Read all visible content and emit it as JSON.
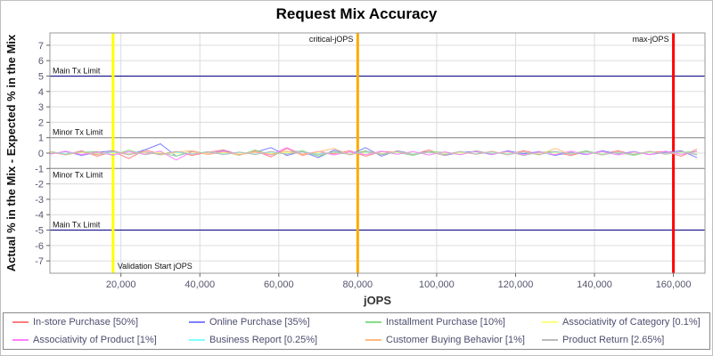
{
  "title": "Request Mix Accuracy",
  "chart_data": {
    "type": "line",
    "title": "Request Mix Accuracy",
    "xlabel": "jOPS",
    "ylabel": "Actual % in the Mix - Expected % in the Mix",
    "xlim": [
      2000,
      168000
    ],
    "ylim": [
      -7.8,
      7.8
    ],
    "grid": true,
    "legend_position": "bottom",
    "y_ticks": [
      7,
      6,
      5,
      4,
      3,
      2,
      1,
      0,
      -1,
      -2,
      -3,
      -4,
      -5,
      -6,
      -7
    ],
    "x_ticks": [
      {
        "v": 20000,
        "label": "20,000"
      },
      {
        "v": 40000,
        "label": "40,000"
      },
      {
        "v": 60000,
        "label": "60,000"
      },
      {
        "v": 80000,
        "label": "80,000"
      },
      {
        "v": 100000,
        "label": "100,000"
      },
      {
        "v": 120000,
        "label": "120,000"
      },
      {
        "v": 140000,
        "label": "140,000"
      },
      {
        "v": 160000,
        "label": "160,000"
      }
    ],
    "h_markers": [
      {
        "value": 5,
        "label": "Main Tx Limit",
        "color": "#000080",
        "label_side": "above"
      },
      {
        "value": 1,
        "label": "Minor Tx Limit",
        "color": "#888888",
        "label_side": "above"
      },
      {
        "value": -1,
        "label": "Minor Tx Limit",
        "color": "#888888",
        "label_side": "below"
      },
      {
        "value": -5,
        "label": "Main Tx Limit",
        "color": "#000080",
        "label_side": "above"
      }
    ],
    "v_markers": [
      {
        "value": 18000,
        "label": "Validation Start jOPS",
        "color": "#ffff00",
        "label_pos": "bottom"
      },
      {
        "value": 80000,
        "label": "critical-jOPS",
        "color": "#ffaa00",
        "label_pos": "top"
      },
      {
        "value": 160000,
        "label": "max-jOPS",
        "color": "#ff0000",
        "label_pos": "top"
      }
    ],
    "x": [
      2000,
      6000,
      10000,
      14000,
      18000,
      22000,
      26000,
      30000,
      34000,
      38000,
      42000,
      46000,
      50000,
      54000,
      58000,
      62000,
      66000,
      70000,
      74000,
      78000,
      82000,
      86000,
      90000,
      94000,
      98000,
      102000,
      106000,
      110000,
      114000,
      118000,
      122000,
      126000,
      130000,
      134000,
      138000,
      142000,
      146000,
      150000,
      154000,
      158000,
      162000,
      166000
    ],
    "series": [
      {
        "name": "In-store Purchase [50%]",
        "color": "#ff7f7f",
        "values": [
          0.05,
          -0.1,
          0.15,
          -0.2,
          0.1,
          -0.35,
          0.2,
          -0.05,
          0.1,
          -0.15,
          0.05,
          0.2,
          -0.1,
          0.15,
          -0.25,
          0.3,
          -0.15,
          0.1,
          -0.05,
          0.15,
          -0.2,
          0.1,
          0.05,
          -0.1,
          0.2,
          -0.15,
          0.05,
          -0.05,
          0.1,
          -0.1,
          0.15,
          -0.05,
          0.05,
          -0.15,
          0.1,
          -0.05,
          0.15,
          -0.1,
          0.05,
          0.1,
          -0.2,
          0.25
        ]
      },
      {
        "name": "Online Purchase [35%]",
        "color": "#7f7fff",
        "values": [
          -0.05,
          0.1,
          -0.15,
          0.05,
          0.15,
          -0.1,
          0.2,
          0.6,
          -0.2,
          0.1,
          -0.05,
          0.15,
          -0.1,
          0.05,
          0.35,
          -0.15,
          0.1,
          -0.3,
          0.2,
          -0.1,
          0.35,
          -0.2,
          0.15,
          -0.05,
          0.1,
          -0.15,
          0.05,
          0.1,
          -0.1,
          0.15,
          -0.05,
          0.1,
          -0.15,
          0.05,
          -0.1,
          0.15,
          -0.05,
          0.1,
          -0.1,
          0.05,
          0.15,
          -0.3
        ]
      },
      {
        "name": "Installment Purchase [10%]",
        "color": "#86dd86",
        "values": [
          0.1,
          -0.05,
          0.05,
          0.1,
          -0.15,
          0.2,
          -0.1,
          0.05,
          -0.2,
          0.15,
          -0.05,
          0.1,
          -0.15,
          0.2,
          -0.1,
          0.05,
          0.15,
          -0.2,
          0.1,
          -0.05,
          0.15,
          -0.1,
          0.05,
          -0.15,
          0.1,
          0.05,
          -0.1,
          0.15,
          -0.05,
          0.1,
          -0.15,
          0.05,
          0.1,
          -0.05,
          0.15,
          -0.1,
          0.05,
          -0.15,
          0.1,
          -0.05,
          0.05,
          0.1
        ]
      },
      {
        "name": "Associativity of Category [0.1%]",
        "color": "#ffff7f",
        "values": [
          0.02,
          -0.03,
          0.04,
          -0.02,
          0.03,
          -0.04,
          0.02,
          0.03,
          -0.02,
          0.04,
          -0.03,
          0.02,
          -0.04,
          0.03,
          -0.02,
          0.04,
          -0.03,
          0.02,
          0.03,
          -0.04,
          0.02,
          -0.02,
          0.03,
          -0.03,
          0.04,
          -0.02,
          0.02,
          -0.03,
          0.03,
          -0.02,
          0.04,
          -0.04,
          0.02,
          -0.02,
          0.03,
          -0.03,
          0.02,
          -0.02,
          0.04,
          -0.03,
          0.02,
          -0.02
        ]
      },
      {
        "name": "Associativity of Product [1%]",
        "color": "#ff7fff",
        "values": [
          -0.08,
          0.12,
          -0.1,
          0.08,
          -0.12,
          0.1,
          -0.08,
          0.12,
          -0.45,
          0.1,
          -0.08,
          0.12,
          -0.1,
          0.08,
          -0.12,
          0.35,
          -0.08,
          0.1,
          -0.12,
          0.08,
          -0.1,
          0.12,
          -0.08,
          0.1,
          -0.12,
          0.08,
          -0.1,
          0.12,
          -0.08,
          0.1,
          -0.12,
          0.08,
          -0.1,
          0.12,
          -0.08,
          0.1,
          -0.12,
          0.08,
          -0.1,
          0.12,
          -0.08,
          0.1
        ]
      },
      {
        "name": "Business Report [0.25%]",
        "color": "#7fffff",
        "values": [
          0.06,
          -0.05,
          0.08,
          -0.07,
          0.05,
          -0.06,
          0.07,
          -0.08,
          0.05,
          -0.05,
          0.08,
          -0.06,
          0.05,
          -0.07,
          0.06,
          -0.05,
          0.08,
          -0.06,
          0.05,
          -0.08,
          0.06,
          -0.05,
          0.07,
          -0.06,
          0.05,
          -0.07,
          0.08,
          -0.05,
          0.06,
          -0.06,
          0.05,
          -0.08,
          0.07,
          -0.05,
          0.06,
          -0.07,
          0.05,
          -0.06,
          0.08,
          -0.05,
          0.06,
          -0.06
        ]
      },
      {
        "name": "Customer Buying Behavior [1%]",
        "color": "#ffbb7f",
        "values": [
          0.1,
          -0.12,
          0.08,
          -0.1,
          0.12,
          -0.08,
          0.1,
          -0.12,
          0.08,
          0.15,
          -0.1,
          0.08,
          -0.12,
          0.1,
          -0.08,
          0.12,
          -0.1,
          0.08,
          0.3,
          -0.12,
          0.1,
          -0.08,
          0.12,
          -0.1,
          0.08,
          -0.12,
          0.1,
          -0.08,
          0.12,
          -0.1,
          0.08,
          -0.12,
          0.3,
          -0.08,
          0.1,
          -0.12,
          0.08,
          -0.1,
          0.12,
          -0.08,
          0.1,
          -0.12
        ]
      },
      {
        "name": "Product Return [2.65%]",
        "color": "#bbbbbb",
        "values": [
          0.07,
          -0.09,
          0.11,
          -0.07,
          0.09,
          -0.11,
          0.07,
          -0.09,
          0.11,
          -0.07,
          0.09,
          -0.11,
          0.07,
          -0.09,
          0.11,
          -0.07,
          0.09,
          -0.11,
          0.07,
          -0.09,
          0.11,
          -0.07,
          0.09,
          -0.11,
          0.07,
          -0.09,
          0.11,
          -0.07,
          0.09,
          -0.11,
          0.07,
          -0.09,
          0.11,
          -0.07,
          0.09,
          -0.11,
          0.07,
          -0.09,
          0.11,
          -0.07,
          0.09,
          -0.11
        ]
      }
    ]
  }
}
